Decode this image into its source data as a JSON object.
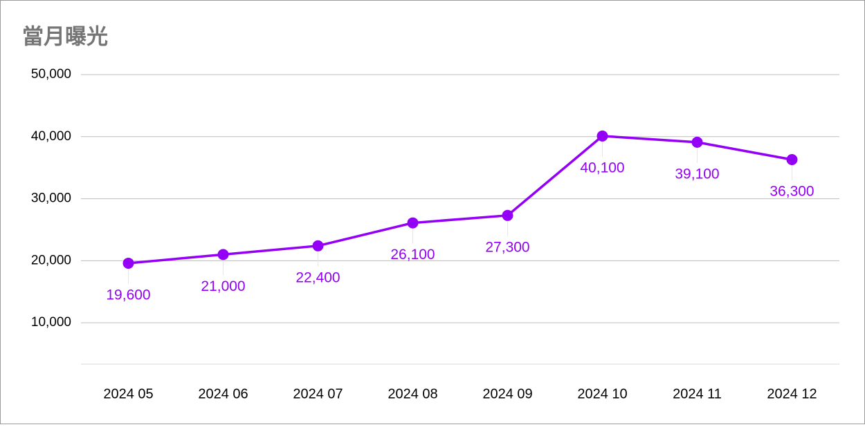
{
  "chart_data": {
    "type": "line",
    "title": "當月曝光",
    "categories": [
      "2024 05",
      "2024 06",
      "2024 07",
      "2024 08",
      "2024 09",
      "2024 10",
      "2024 11",
      "2024 12"
    ],
    "series": [
      {
        "color": "#9400f5",
        "values": [
          19600,
          21000,
          22400,
          26100,
          27300,
          40100,
          39100,
          36300
        ],
        "value_labels": [
          "19,600",
          "21,000",
          "22,400",
          "26,100",
          "27,300",
          "40,100",
          "39,100",
          "36,300"
        ]
      }
    ],
    "ylim": [
      3333,
      50000
    ],
    "yticks": [
      {
        "value": 10000,
        "label": "10,000"
      },
      {
        "value": 20000,
        "label": "20,000"
      },
      {
        "value": 30000,
        "label": "30,000"
      },
      {
        "value": 40000,
        "label": "40,000"
      },
      {
        "value": 50000,
        "label": "50,000"
      }
    ],
    "grid": true
  }
}
